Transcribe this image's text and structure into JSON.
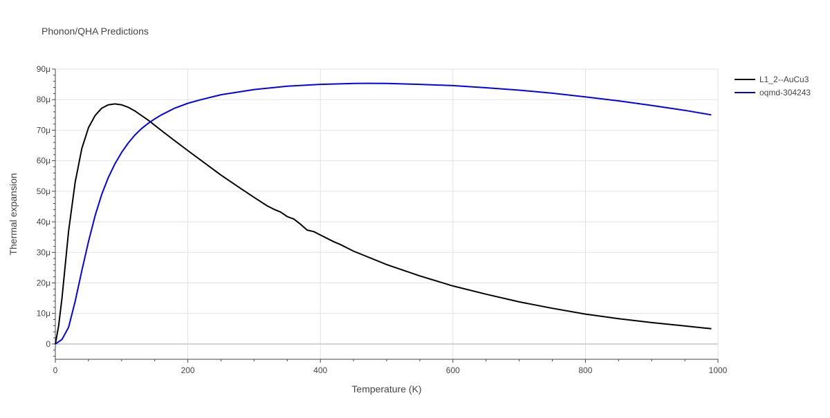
{
  "chart_data": {
    "type": "line",
    "title": "Phonon/QHA Predictions",
    "xlabel": "Temperature (K)",
    "ylabel": "Thermal expansion",
    "xlim": [
      0,
      1000
    ],
    "ylim": [
      -5e-06,
      9e-05
    ],
    "x_ticks": [
      0,
      200,
      400,
      600,
      800,
      1000
    ],
    "x_tick_labels": [
      "0",
      "200",
      "400",
      "600",
      "800",
      "1000"
    ],
    "y_ticks": [
      0,
      1e-05,
      2e-05,
      3e-05,
      4e-05,
      5e-05,
      6e-05,
      7e-05,
      8e-05,
      9e-05
    ],
    "y_tick_labels": [
      "0",
      "10μ",
      "20μ",
      "30μ",
      "40μ",
      "50μ",
      "60μ",
      "70μ",
      "80μ",
      "90μ"
    ],
    "grid": true,
    "legend_position": "top-right",
    "series": [
      {
        "name": "L1_2--AuCu3",
        "color": "#000000",
        "x": [
          0,
          5,
          10,
          20,
          30,
          40,
          50,
          60,
          70,
          80,
          90,
          100,
          110,
          120,
          130,
          140,
          150,
          160,
          180,
          200,
          220,
          250,
          280,
          300,
          320,
          330,
          340,
          350,
          360,
          370,
          380,
          390,
          400,
          420,
          430,
          450,
          500,
          550,
          600,
          650,
          700,
          750,
          800,
          850,
          900,
          950,
          990
        ],
        "y": [
          0,
          6e-06,
          1.5e-05,
          3.7e-05,
          5.3e-05,
          6.4e-05,
          7.08e-05,
          7.48e-05,
          7.72e-05,
          7.83e-05,
          7.86e-05,
          7.83e-05,
          7.75e-05,
          7.63e-05,
          7.48e-05,
          7.33e-05,
          7.16e-05,
          6.99e-05,
          6.66e-05,
          6.33e-05,
          6.01e-05,
          5.53e-05,
          5.09e-05,
          4.8e-05,
          4.52e-05,
          4.41e-05,
          4.32e-05,
          4.17e-05,
          4.09e-05,
          3.92e-05,
          3.73e-05,
          3.68e-05,
          3.57e-05,
          3.35e-05,
          3.26e-05,
          3.04e-05,
          2.6e-05,
          2.23e-05,
          1.9e-05,
          1.63e-05,
          1.38e-05,
          1.17e-05,
          9.8e-06,
          8.3e-06,
          7e-06,
          5.9e-06,
          5e-06
        ]
      },
      {
        "name": "oqmd-304243",
        "color": "#0000ee",
        "x": [
          0,
          10,
          20,
          30,
          40,
          50,
          60,
          70,
          80,
          90,
          100,
          110,
          120,
          130,
          140,
          150,
          160,
          180,
          200,
          220,
          250,
          300,
          350,
          400,
          450,
          470,
          500,
          550,
          600,
          650,
          700,
          750,
          800,
          850,
          900,
          950,
          990
        ],
        "y": [
          0,
          1.5e-06,
          5.5e-06,
          1.4e-05,
          2.4e-05,
          3.35e-05,
          4.2e-05,
          4.9e-05,
          5.45e-05,
          5.9e-05,
          6.27e-05,
          6.58e-05,
          6.84e-05,
          7.05e-05,
          7.22e-05,
          7.37e-05,
          7.5e-05,
          7.72e-05,
          7.88e-05,
          8e-05,
          8.16e-05,
          8.33e-05,
          8.44e-05,
          8.5e-05,
          8.53e-05,
          8.535e-05,
          8.53e-05,
          8.5e-05,
          8.46e-05,
          8.39e-05,
          8.31e-05,
          8.21e-05,
          8.09e-05,
          7.96e-05,
          7.81e-05,
          7.65e-05,
          7.5e-05
        ]
      }
    ]
  }
}
